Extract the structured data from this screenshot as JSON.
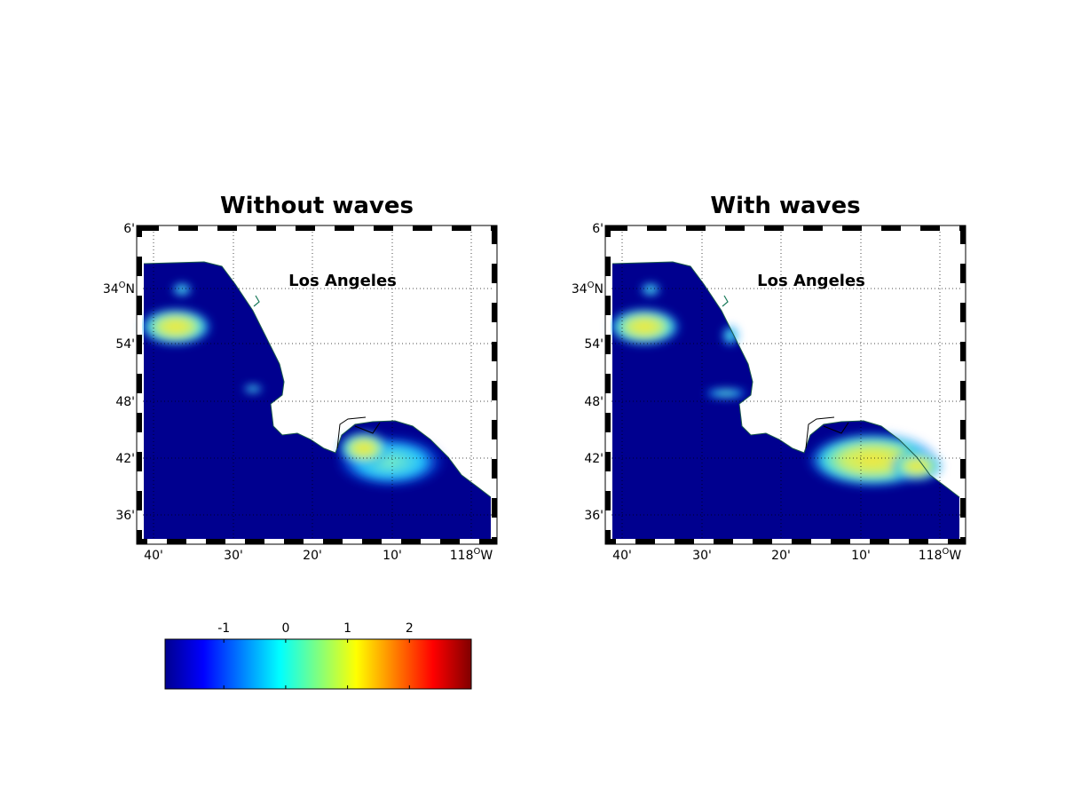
{
  "panels": [
    {
      "title": "Without waves",
      "place_label": "Los Angeles",
      "lat_labels": [
        {
          "main": "6'"
        },
        {
          "main": "34",
          "sup": "O",
          "suffix": "N"
        },
        {
          "main": "54'"
        },
        {
          "main": "48'"
        },
        {
          "main": "42'"
        },
        {
          "main": "36'"
        }
      ],
      "lon_labels": [
        {
          "main": "40'"
        },
        {
          "main": "30'"
        },
        {
          "main": "20'"
        },
        {
          "main": "10'"
        },
        {
          "main": "118",
          "sup": "O",
          "suffix": "W"
        }
      ]
    },
    {
      "title": "With waves",
      "place_label": "Los Angeles",
      "lat_labels": [
        {
          "main": "6'"
        },
        {
          "main": "34",
          "sup": "O",
          "suffix": "N"
        },
        {
          "main": "54'"
        },
        {
          "main": "48'"
        },
        {
          "main": "42'"
        },
        {
          "main": "36'"
        }
      ],
      "lon_labels": [
        {
          "main": "40'"
        },
        {
          "main": "30'"
        },
        {
          "main": "20'"
        },
        {
          "main": "10'"
        },
        {
          "main": "118",
          "sup": "O",
          "suffix": "W"
        }
      ]
    }
  ],
  "colorbar": {
    "lim": [
      -1.95,
      3
    ],
    "ticks": [
      -1,
      0,
      1,
      2
    ]
  }
}
